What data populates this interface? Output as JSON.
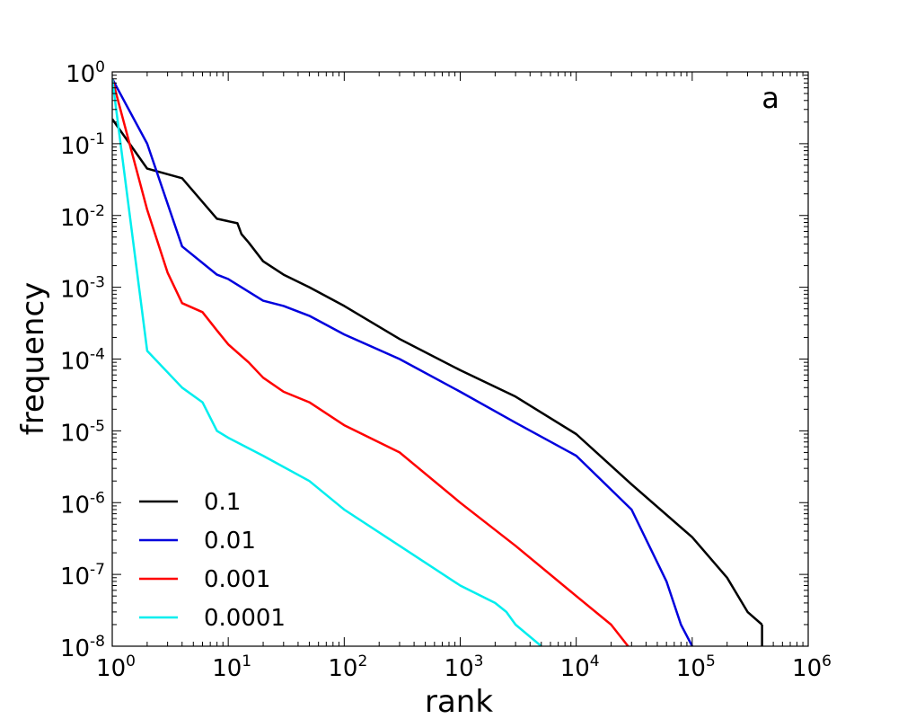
{
  "chart_data": {
    "type": "line",
    "panel_label": "a",
    "xlabel": "rank",
    "ylabel": "frequency",
    "xscale": "log",
    "yscale": "log",
    "xlim": [
      1,
      1000000
    ],
    "ylim": [
      1e-08,
      1
    ],
    "x_ticks": [
      {
        "base": "10",
        "exp": "0",
        "value": 1
      },
      {
        "base": "10",
        "exp": "1",
        "value": 10
      },
      {
        "base": "10",
        "exp": "2",
        "value": 100
      },
      {
        "base": "10",
        "exp": "3",
        "value": 1000
      },
      {
        "base": "10",
        "exp": "4",
        "value": 10000
      },
      {
        "base": "10",
        "exp": "5",
        "value": 100000
      },
      {
        "base": "10",
        "exp": "6",
        "value": 1000000
      }
    ],
    "y_ticks": [
      {
        "base": "10",
        "exp": "0",
        "value": 1
      },
      {
        "base": "10",
        "exp": "-1",
        "value": 0.1
      },
      {
        "base": "10",
        "exp": "-2",
        "value": 0.01
      },
      {
        "base": "10",
        "exp": "-3",
        "value": 0.001
      },
      {
        "base": "10",
        "exp": "-4",
        "value": 0.0001
      },
      {
        "base": "10",
        "exp": "-5",
        "value": 1e-05
      },
      {
        "base": "10",
        "exp": "-6",
        "value": 1e-06
      },
      {
        "base": "10",
        "exp": "-7",
        "value": 1e-07
      },
      {
        "base": "10",
        "exp": "-8",
        "value": 1e-08
      }
    ],
    "legend_position": "lower-left",
    "series": [
      {
        "name": "0.1",
        "color": "#000000",
        "x": [
          1,
          2,
          4,
          8,
          12,
          13,
          15,
          20,
          30,
          50,
          100,
          300,
          1000,
          3000,
          10000,
          30000,
          100000,
          200000,
          300000,
          400000
        ],
        "y": [
          0.22,
          0.045,
          0.033,
          0.009,
          0.0078,
          0.0055,
          0.0042,
          0.0023,
          0.0015,
          0.001,
          0.00055,
          0.00019,
          7e-05,
          3e-05,
          9e-06,
          1.8e-06,
          3.3e-07,
          9e-08,
          3e-08,
          2e-08
        ]
      },
      {
        "name": "0.01",
        "color": "#0000dd",
        "x": [
          1,
          2,
          4,
          8,
          10,
          20,
          30,
          50,
          100,
          300,
          1000,
          3000,
          10000,
          30000,
          60000,
          80000,
          100000
        ],
        "y": [
          0.8,
          0.1,
          0.0037,
          0.0015,
          0.0013,
          0.00065,
          0.00055,
          0.0004,
          0.00022,
          0.0001,
          3.5e-05,
          1.3e-05,
          4.5e-06,
          8e-07,
          8e-08,
          2e-08,
          1e-08
        ]
      },
      {
        "name": "0.001",
        "color": "#ff0000",
        "x": [
          1,
          2,
          3,
          4,
          6,
          8,
          10,
          15,
          20,
          30,
          50,
          100,
          300,
          1000,
          3000,
          10000,
          20000,
          28000
        ],
        "y": [
          0.8,
          0.012,
          0.0016,
          0.0006,
          0.00045,
          0.00025,
          0.00016,
          9e-05,
          5.5e-05,
          3.5e-05,
          2.5e-05,
          1.2e-05,
          5e-06,
          1e-06,
          2.5e-07,
          5e-08,
          2e-08,
          1e-08
        ]
      },
      {
        "name": "0.0001",
        "color": "#00eeee",
        "x": [
          1,
          2,
          4,
          6,
          8,
          10,
          20,
          50,
          100,
          300,
          1000,
          2000,
          2500,
          3000,
          5000
        ],
        "y": [
          0.8,
          0.00013,
          4e-05,
          2.5e-05,
          1e-05,
          8e-06,
          4.5e-06,
          2e-06,
          8e-07,
          2.5e-07,
          7e-08,
          4e-08,
          3e-08,
          2e-08,
          1e-08
        ]
      }
    ]
  }
}
